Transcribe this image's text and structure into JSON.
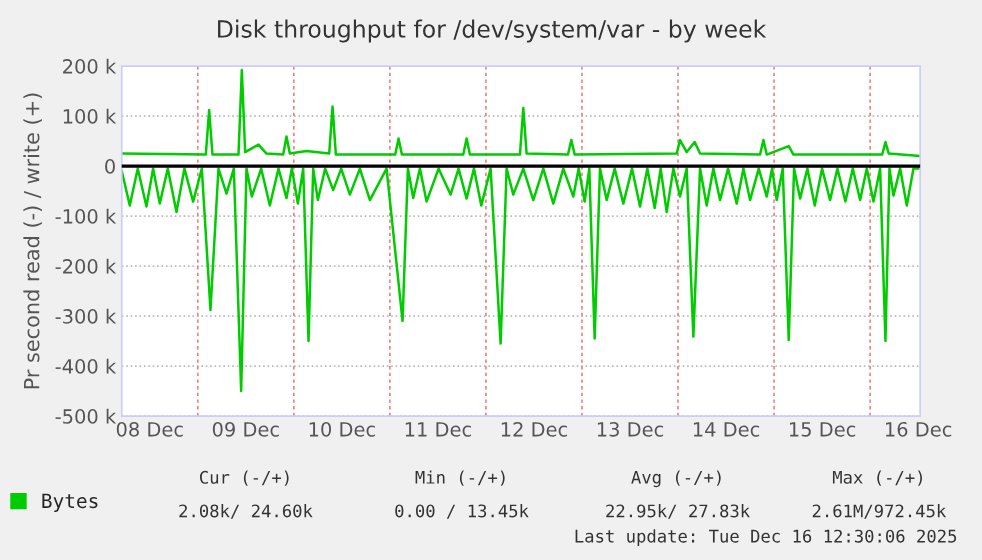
{
  "chart_data": {
    "type": "line",
    "title": "Disk throughput for /dev/system/var - by week",
    "ylabel": "Pr second read (-) / write (+)",
    "xlim": [
      "2025-12-08T05:00",
      "2025-12-16T12:30"
    ],
    "xticks": [
      {
        "value": "2025-12-08T12:00",
        "label": "08 Dec"
      },
      {
        "value": "2025-12-09T00:00",
        "label": null
      },
      {
        "value": "2025-12-09T12:00",
        "label": "09 Dec"
      },
      {
        "value": "2025-12-10T00:00",
        "label": null
      },
      {
        "value": "2025-12-10T12:00",
        "label": "10 Dec"
      },
      {
        "value": "2025-12-11T00:00",
        "label": null
      },
      {
        "value": "2025-12-11T12:00",
        "label": "11 Dec"
      },
      {
        "value": "2025-12-12T00:00",
        "label": null
      },
      {
        "value": "2025-12-12T12:00",
        "label": "12 Dec"
      },
      {
        "value": "2025-12-13T00:00",
        "label": null
      },
      {
        "value": "2025-12-13T12:00",
        "label": "13 Dec"
      },
      {
        "value": "2025-12-14T00:00",
        "label": null
      },
      {
        "value": "2025-12-14T12:00",
        "label": "14 Dec"
      },
      {
        "value": "2025-12-15T00:00",
        "label": null
      },
      {
        "value": "2025-12-15T12:00",
        "label": "15 Dec"
      },
      {
        "value": "2025-12-16T00:00",
        "label": null
      },
      {
        "value": "2025-12-16T12:00",
        "label": "16 Dec"
      }
    ],
    "ylim": [
      -500000,
      200000
    ],
    "yticks": [
      {
        "value": -500000,
        "label": "-500 k"
      },
      {
        "value": -400000,
        "label": "-400 k"
      },
      {
        "value": -300000,
        "label": "-300 k"
      },
      {
        "value": -200000,
        "label": "-200 k"
      },
      {
        "value": -100000,
        "label": "-100 k"
      },
      0,
      {
        "value": 100000,
        "label": "100 k"
      },
      {
        "value": 200000,
        "label": "200 k"
      }
    ],
    "grid": true,
    "legend": "bottom left",
    "marker": "none",
    "line_style": "solid",
    "ref_lines": [
      {
        "axis": "y",
        "value": 0,
        "color": "#000000"
      }
    ],
    "series": [
      {
        "name": "Bytes",
        "color": "#00cc00",
        "x": [
          "2025-12-08T05:00",
          "2025-12-09T02:00",
          "2025-12-09T02:50",
          "2025-12-09T03:40",
          "2025-12-09T10:10",
          "2025-12-09T11:00",
          "2025-12-09T11:50",
          "2025-12-09T15:10",
          "2025-12-09T17:10",
          "2025-12-09T21:20",
          "2025-12-09T22:10",
          "2025-12-09T23:00",
          "2025-12-10T03:10",
          "2025-12-10T08:50",
          "2025-12-10T09:40",
          "2025-12-10T10:30",
          "2025-12-11T01:20",
          "2025-12-11T02:10",
          "2025-12-11T03:00",
          "2025-12-11T18:20",
          "2025-12-11T19:10",
          "2025-12-11T20:00",
          "2025-12-12T08:30",
          "2025-12-12T09:20",
          "2025-12-12T10:10",
          "2025-12-12T20:30",
          "2025-12-12T21:20",
          "2025-12-12T22:10",
          "2025-12-13T23:40",
          "2025-12-14T00:30",
          "2025-12-14T02:10",
          "2025-12-14T04:10",
          "2025-12-14T05:30",
          "2025-12-14T20:30",
          "2025-12-14T21:20",
          "2025-12-14T22:10",
          "2025-12-15T03:40",
          "2025-12-15T04:50",
          "2025-12-16T03:00",
          "2025-12-16T03:50",
          "2025-12-16T04:40",
          "2025-12-16T12:30"
        ],
        "values": [
          25000,
          23000,
          112000,
          23000,
          23000,
          192000,
          28000,
          43000,
          25000,
          23000,
          59000,
          25000,
          30000,
          25000,
          119000,
          23000,
          23000,
          55000,
          23000,
          23000,
          55000,
          23000,
          23000,
          116000,
          25000,
          23000,
          52000,
          23000,
          25000,
          52000,
          28000,
          48000,
          25000,
          23000,
          52000,
          23000,
          40000,
          23000,
          23000,
          48000,
          25000,
          20000
        ]
      },
      {
        "color": "#00cc00",
        "x": [
          "2025-12-08T05:00",
          "2025-12-08T07:00",
          "2025-12-08T09:00",
          "2025-12-08T11:10",
          "2025-12-08T12:50",
          "2025-12-08T14:30",
          "2025-12-08T16:30",
          "2025-12-08T18:40",
          "2025-12-08T20:40",
          "2025-12-08T22:50",
          "2025-12-09T01:00",
          "2025-12-09T03:10",
          "2025-12-09T05:10",
          "2025-12-09T07:10",
          "2025-12-09T09:00",
          "2025-12-09T10:50",
          "2025-12-09T12:10",
          "2025-12-09T13:30",
          "2025-12-09T15:50",
          "2025-12-09T18:00",
          "2025-12-09T20:10",
          "2025-12-09T22:10",
          "2025-12-09T23:30",
          "2025-12-10T01:00",
          "2025-12-10T02:20",
          "2025-12-10T03:40",
          "2025-12-10T04:50",
          "2025-12-10T06:00",
          "2025-12-10T07:50",
          "2025-12-10T09:50",
          "2025-12-10T11:50",
          "2025-12-10T14:00",
          "2025-12-10T16:30",
          "2025-12-10T19:00",
          "2025-12-10T23:10",
          "2025-12-11T03:10",
          "2025-12-11T04:30",
          "2025-12-11T05:50",
          "2025-12-11T07:30",
          "2025-12-11T09:10",
          "2025-12-11T12:10",
          "2025-12-11T15:10",
          "2025-12-11T17:10",
          "2025-12-11T19:10",
          "2025-12-11T21:00",
          "2025-12-11T22:50",
          "2025-12-12T01:10",
          "2025-12-12T03:40",
          "2025-12-12T05:10",
          "2025-12-12T06:50",
          "2025-12-12T09:20",
          "2025-12-12T11:50",
          "2025-12-12T14:20",
          "2025-12-12T16:50",
          "2025-12-12T19:20",
          "2025-12-12T21:50",
          "2025-12-12T23:10",
          "2025-12-13T00:40",
          "2025-12-13T01:50",
          "2025-12-13T03:10",
          "2025-12-13T04:30",
          "2025-12-13T06:10",
          "2025-12-13T08:10",
          "2025-12-13T10:20",
          "2025-12-13T12:30",
          "2025-12-13T14:30",
          "2025-12-13T16:20",
          "2025-12-13T18:10",
          "2025-12-13T19:40",
          "2025-12-13T21:10",
          "2025-12-13T22:50",
          "2025-12-14T00:30",
          "2025-12-14T02:10",
          "2025-12-14T03:50",
          "2025-12-14T05:30",
          "2025-12-14T07:10",
          "2025-12-14T08:50",
          "2025-12-14T10:30",
          "2025-12-14T12:30",
          "2025-12-14T14:40",
          "2025-12-14T16:20",
          "2025-12-14T18:00",
          "2025-12-14T20:10",
          "2025-12-14T22:10",
          "2025-12-14T23:30",
          "2025-12-15T00:40",
          "2025-12-15T02:10",
          "2025-12-15T03:40",
          "2025-12-15T05:00",
          "2025-12-15T06:30",
          "2025-12-15T08:20",
          "2025-12-15T10:10",
          "2025-12-15T12:00",
          "2025-12-15T14:00",
          "2025-12-15T15:50",
          "2025-12-15T17:50",
          "2025-12-15T19:40",
          "2025-12-15T21:30",
          "2025-12-15T23:10",
          "2025-12-16T00:50",
          "2025-12-16T02:30",
          "2025-12-16T03:50",
          "2025-12-16T04:50",
          "2025-12-16T05:50",
          "2025-12-16T07:30",
          "2025-12-16T09:10",
          "2025-12-16T10:50",
          "2025-12-16T12:30"
        ],
        "values": [
          -10000,
          -79000,
          -5000,
          -81000,
          -5000,
          -75000,
          -5000,
          -92000,
          -5000,
          -71000,
          -5000,
          -288000,
          -5000,
          -55000,
          -5000,
          -450000,
          -5000,
          -61000,
          -5000,
          -79000,
          -5000,
          -64000,
          -5000,
          -75000,
          -5000,
          -350000,
          -5000,
          -68000,
          -5000,
          -48000,
          -5000,
          -57000,
          -5000,
          -68000,
          -5000,
          -310000,
          -5000,
          -64000,
          -5000,
          -71000,
          -5000,
          -57000,
          -5000,
          -65000,
          -5000,
          -79000,
          -5000,
          -355000,
          -5000,
          -57000,
          -5000,
          -68000,
          -5000,
          -75000,
          -5000,
          -61000,
          -5000,
          -71000,
          -5000,
          -345000,
          -5000,
          -68000,
          -5000,
          -75000,
          -5000,
          -81000,
          -5000,
          -84000,
          -5000,
          -92000,
          -5000,
          -61000,
          -5000,
          -341000,
          -5000,
          -79000,
          -5000,
          -68000,
          -5000,
          -75000,
          -5000,
          -68000,
          -5000,
          -61000,
          -5000,
          -68000,
          -5000,
          -348000,
          -5000,
          -65000,
          -5000,
          -79000,
          -5000,
          -68000,
          -5000,
          -71000,
          -5000,
          -68000,
          -5000,
          -71000,
          -5000,
          -350000,
          -5000,
          -59000,
          -5000,
          -79000,
          -5000,
          -5000
        ]
      }
    ],
    "annotations": [
      "Cur (-/+)",
      "Min (-/+)",
      "Avg (-/+)",
      "Max (-/+)",
      "2.08k/ 24.60k",
      "0.00 / 13.45k",
      "22.95k/ 27.83k",
      "2.61M/972.45k",
      "Last update: Tue Dec 16 12:30:06 2025"
    ]
  }
}
